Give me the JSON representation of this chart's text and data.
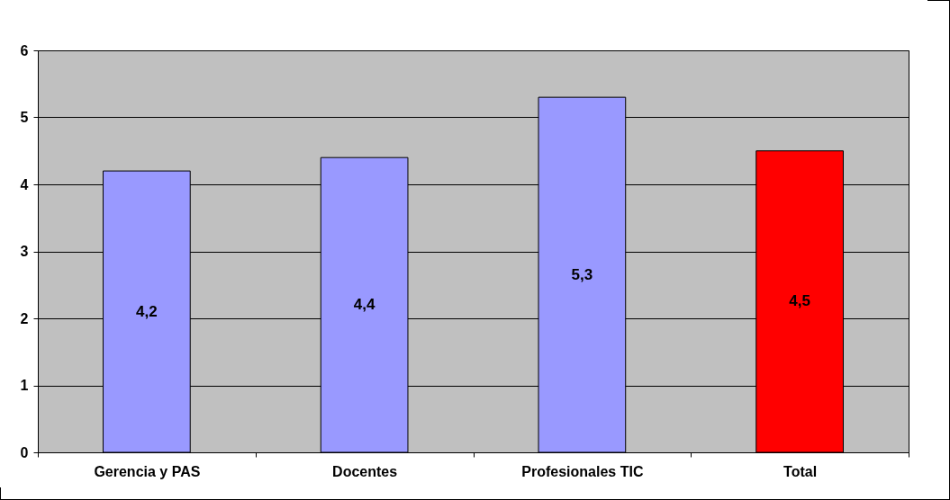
{
  "chart_data": {
    "type": "bar",
    "categories": [
      "Gerencia y PAS",
      "Docentes",
      "Profesionales TIC",
      "Total"
    ],
    "values": [
      4.2,
      4.4,
      5.3,
      4.5
    ],
    "value_labels": [
      "4,2",
      "4,4",
      "5,3",
      "4,5"
    ],
    "colors": [
      "#9999ff",
      "#9999ff",
      "#9999ff",
      "#ff0000"
    ],
    "ylim": [
      0,
      6
    ],
    "yticks": [
      0,
      1,
      2,
      3,
      4,
      5,
      6
    ],
    "grid": "y"
  }
}
